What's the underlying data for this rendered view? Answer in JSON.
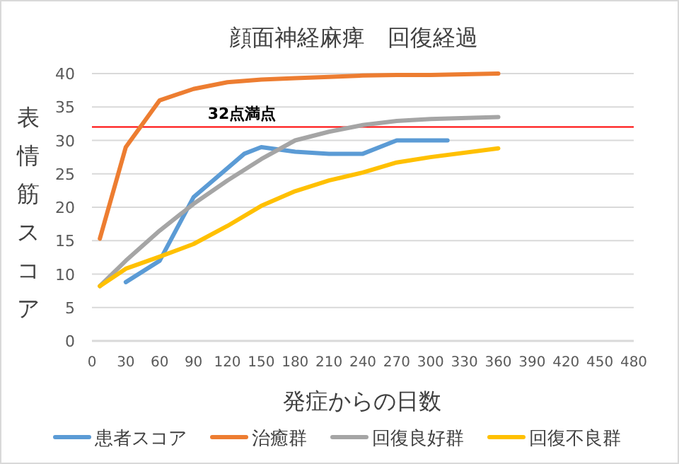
{
  "chart_data": {
    "type": "line",
    "title": "顔面神経麻痺　回復経過",
    "xlabel": "発症からの日数",
    "ylabel": "表情筋スコア",
    "xlim": [
      0,
      480
    ],
    "xticks": [
      0,
      30,
      60,
      90,
      120,
      150,
      180,
      210,
      240,
      270,
      300,
      330,
      360,
      390,
      420,
      450,
      480
    ],
    "ylim": [
      0,
      40
    ],
    "yticks": [
      0,
      5,
      10,
      15,
      20,
      25,
      30,
      35,
      40
    ],
    "grid": "y",
    "legend": "bottom",
    "marker": "none",
    "line_style": "solid",
    "ref_lines": [
      {
        "axis": "y",
        "value": 32,
        "label": "32点満点",
        "color": "#ff0000"
      }
    ],
    "series": [
      {
        "name": "患者スコア",
        "color": "#5b9bd5",
        "x": [
          30,
          60,
          90,
          135,
          150,
          180,
          210,
          240,
          270,
          300,
          315
        ],
        "values": [
          8.8,
          12,
          21.5,
          28,
          29,
          28.3,
          28,
          28,
          30,
          30,
          30
        ]
      },
      {
        "name": "治癒群",
        "color": "#ed7d31",
        "x": [
          7,
          30,
          60,
          90,
          120,
          150,
          180,
          210,
          240,
          270,
          300,
          360
        ],
        "values": [
          15.3,
          29,
          36,
          37.7,
          38.7,
          39.1,
          39.3,
          39.5,
          39.7,
          39.8,
          39.8,
          40
        ]
      },
      {
        "name": "回復良好群",
        "color": "#a5a5a5",
        "x": [
          7,
          30,
          60,
          90,
          120,
          150,
          180,
          210,
          240,
          270,
          300,
          360
        ],
        "values": [
          8.2,
          12,
          16.5,
          20.5,
          24,
          27.2,
          30,
          31.3,
          32.3,
          32.9,
          33.2,
          33.5
        ]
      },
      {
        "name": "回復不良群",
        "color": "#ffc000",
        "x": [
          7,
          30,
          60,
          90,
          120,
          150,
          180,
          210,
          240,
          270,
          300,
          360
        ],
        "values": [
          8.2,
          10.8,
          12.6,
          14.5,
          17.2,
          20.2,
          22.4,
          24,
          25.2,
          26.7,
          27.5,
          28.8
        ]
      }
    ]
  }
}
